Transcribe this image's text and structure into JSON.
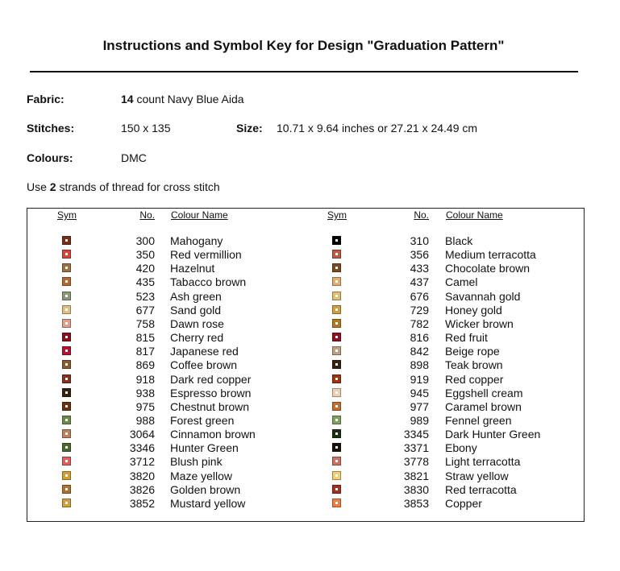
{
  "header": {
    "title": "Instructions and Symbol Key for Design \"Graduation Pattern\""
  },
  "info": {
    "fabric_label": "Fabric:",
    "fabric_count": "14",
    "fabric_value": "count Navy Blue Aida",
    "stitches_label": "Stitches:",
    "stitches_value": "150 x 135",
    "size_label": "Size:",
    "size_value": "10.71 x 9.64 inches or 27.21 x 24.49 cm",
    "colours_label": "Colours:",
    "colours_value": "DMC",
    "instruction_start": "Use",
    "instruction_count": "2",
    "instruction_end": "strands of thread for cross stitch"
  },
  "table": {
    "headers": [
      "Sym",
      "No.",
      "Colour Name"
    ],
    "left": [
      {
        "no": "300",
        "name": "Mahogany",
        "color": "#7a2e1a"
      },
      {
        "no": "350",
        "name": "Red vermillion",
        "color": "#d9443a"
      },
      {
        "no": "420",
        "name": "Hazelnut",
        "color": "#a07040"
      },
      {
        "no": "435",
        "name": "Tabacco brown",
        "color": "#b56a30"
      },
      {
        "no": "523",
        "name": "Ash green",
        "color": "#8a9a78"
      },
      {
        "no": "677",
        "name": "Sand gold",
        "color": "#e0c080"
      },
      {
        "no": "758",
        "name": "Dawn rose",
        "color": "#e0a090"
      },
      {
        "no": "815",
        "name": "Cherry red",
        "color": "#8a1020"
      },
      {
        "no": "817",
        "name": "Japanese red",
        "color": "#b01830"
      },
      {
        "no": "869",
        "name": "Coffee brown",
        "color": "#8a5a30"
      },
      {
        "no": "918",
        "name": "Dark red copper",
        "color": "#8a3020"
      },
      {
        "no": "938",
        "name": "Espresso brown",
        "color": "#3a2010"
      },
      {
        "no": "975",
        "name": "Chestnut brown",
        "color": "#6a3010"
      },
      {
        "no": "988",
        "name": "Forest green",
        "color": "#6a8a4a"
      },
      {
        "no": "3064",
        "name": "Cinnamon brown",
        "color": "#c08060"
      },
      {
        "no": "3346",
        "name": "Hunter Green",
        "color": "#4a6a2a"
      },
      {
        "no": "3712",
        "name": "Blush pink",
        "color": "#e06060"
      },
      {
        "no": "3820",
        "name": "Maze yellow",
        "color": "#d0a030"
      },
      {
        "no": "3826",
        "name": "Golden brown",
        "color": "#b07030"
      },
      {
        "no": "3852",
        "name": "Mustard yellow",
        "color": "#d0a040"
      }
    ],
    "right": [
      {
        "no": "310",
        "name": "Black",
        "color": "#000000"
      },
      {
        "no": "356",
        "name": "Medium terracotta",
        "color": "#c05a40"
      },
      {
        "no": "433",
        "name": "Chocolate brown",
        "color": "#7a4a20"
      },
      {
        "no": "437",
        "name": "Camel",
        "color": "#e0b070"
      },
      {
        "no": "676",
        "name": "Savannah gold",
        "color": "#e0c070"
      },
      {
        "no": "729",
        "name": "Honey gold",
        "color": "#d0a040"
      },
      {
        "no": "782",
        "name": "Wicker brown",
        "color": "#b07a20"
      },
      {
        "no": "816",
        "name": "Red fruit",
        "color": "#901020"
      },
      {
        "no": "842",
        "name": "Beige rope",
        "color": "#c0a080"
      },
      {
        "no": "898",
        "name": "Teak brown",
        "color": "#3a2010"
      },
      {
        "no": "919",
        "name": "Red copper",
        "color": "#a03010"
      },
      {
        "no": "945",
        "name": "Eggshell cream",
        "color": "#f0d0b0"
      },
      {
        "no": "977",
        "name": "Caramel brown",
        "color": "#c07030"
      },
      {
        "no": "989",
        "name": "Fennel green",
        "color": "#80a060"
      },
      {
        "no": "3345",
        "name": "Dark Hunter Green",
        "color": "#1a3010"
      },
      {
        "no": "3371",
        "name": "Ebony",
        "color": "#1a1008"
      },
      {
        "no": "3778",
        "name": "Light terracotta",
        "color": "#d07060"
      },
      {
        "no": "3821",
        "name": "Straw yellow",
        "color": "#f0d070"
      },
      {
        "no": "3830",
        "name": "Red terracotta",
        "color": "#a03020"
      },
      {
        "no": "3853",
        "name": "Copper",
        "color": "#f08040"
      }
    ]
  }
}
